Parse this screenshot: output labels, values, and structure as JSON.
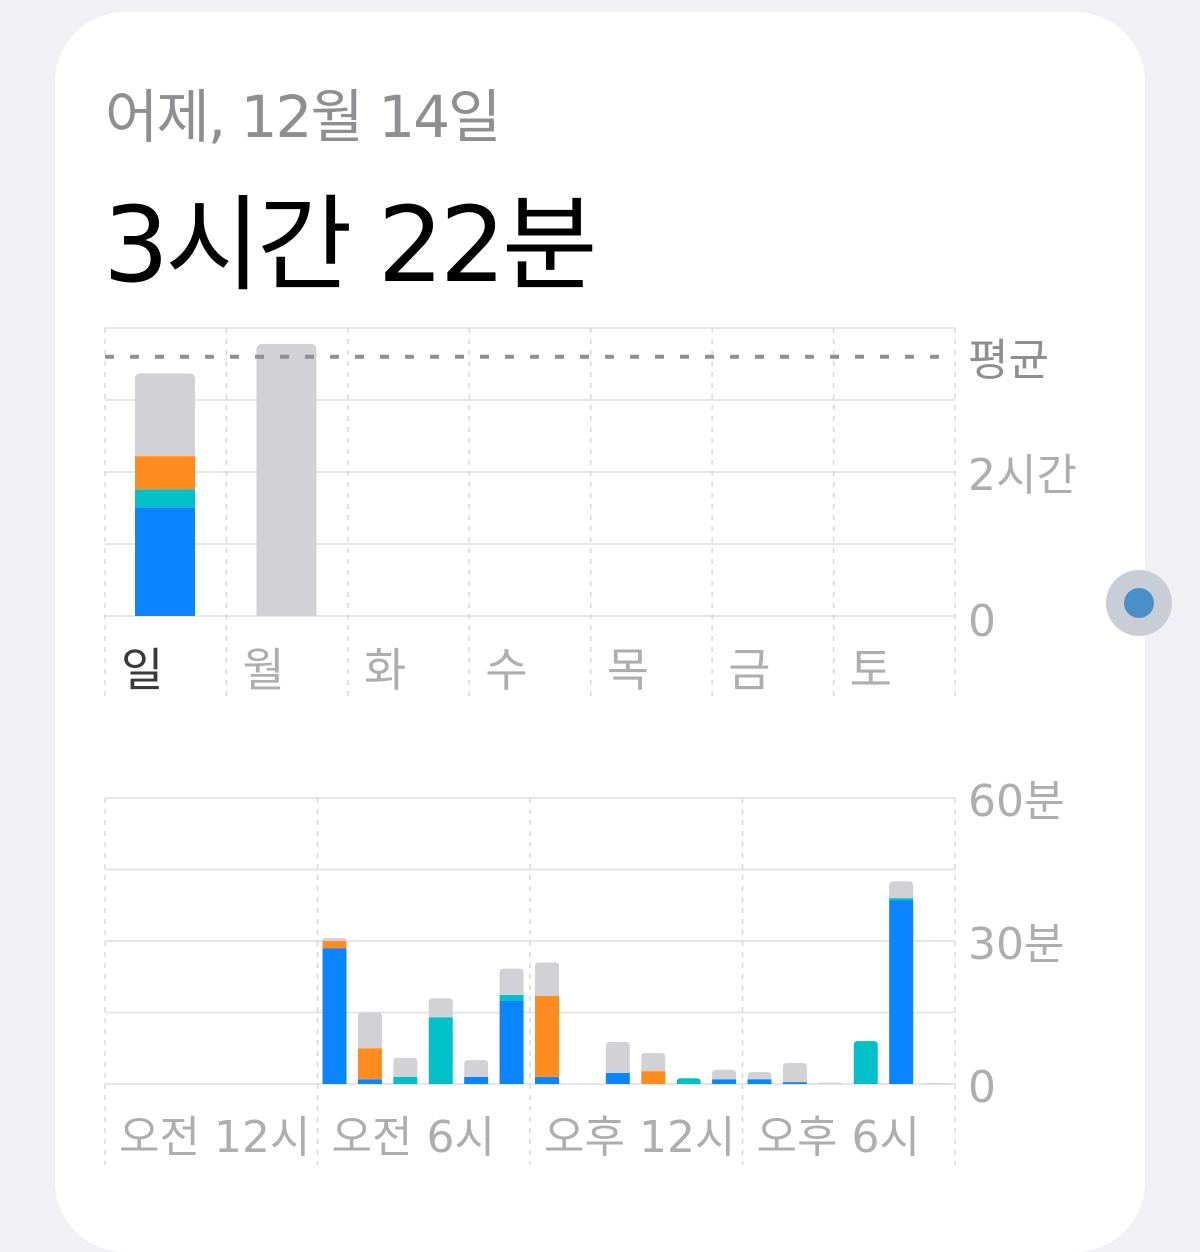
{
  "header": {
    "date": "어제, 12월 14일",
    "total": "3시간 22분"
  },
  "colors": {
    "blue": "#0a84ff",
    "teal": "#00c0c8",
    "orange": "#ff8c1f",
    "gray": "#d1d1d6",
    "grid": "#e5e5ea",
    "avg": "#8e8e93"
  },
  "chart_data": [
    {
      "type": "bar",
      "stacked": true,
      "unit": "hours",
      "categories": [
        "일",
        "월",
        "화",
        "수",
        "목",
        "금",
        "토"
      ],
      "selected": "일",
      "ylim": [
        0,
        4
      ],
      "y_tick_labels": [
        {
          "value": 0,
          "label": "0"
        },
        {
          "value": 2,
          "label": "2시간"
        }
      ],
      "average": {
        "value": 3.6,
        "label": "평균"
      },
      "series": [
        {
          "color": "blue",
          "values": [
            1.51,
            0,
            0,
            0,
            0,
            0,
            0
          ]
        },
        {
          "color": "teal",
          "values": [
            0.25,
            0,
            0,
            0,
            0,
            0,
            0
          ]
        },
        {
          "color": "orange",
          "values": [
            0.46,
            0,
            0,
            0,
            0,
            0,
            0
          ]
        },
        {
          "color": "gray",
          "values": [
            1.15,
            3.78,
            0,
            0,
            0,
            0,
            0
          ]
        }
      ]
    },
    {
      "type": "bar",
      "stacked": true,
      "unit": "minutes",
      "categories": [
        "0",
        "1",
        "2",
        "3",
        "4",
        "5",
        "6",
        "7",
        "8",
        "9",
        "10",
        "11",
        "12",
        "13",
        "14",
        "15",
        "16",
        "17",
        "18",
        "19",
        "20",
        "21",
        "22",
        "23"
      ],
      "x_tick_labels": [
        "오전 12시",
        "오전 6시",
        "오후 12시",
        "오후 6시"
      ],
      "ylim": [
        0,
        60
      ],
      "y_tick_labels": [
        {
          "value": 0,
          "label": "0"
        },
        {
          "value": 30,
          "label": "30분"
        },
        {
          "value": 60,
          "label": "60분"
        }
      ],
      "series": [
        {
          "color": "blue",
          "values": [
            0,
            0,
            0,
            0,
            0,
            0,
            28.5,
            1,
            0,
            0,
            1.5,
            17.5,
            1.5,
            0,
            2.3,
            0,
            0,
            1,
            1,
            0.4,
            0,
            0,
            38.5,
            0
          ]
        },
        {
          "color": "teal",
          "values": [
            0,
            0,
            0,
            0,
            0,
            0,
            0,
            0,
            1.5,
            14,
            0,
            1.2,
            0,
            0,
            0,
            0,
            1.2,
            0,
            0,
            0,
            0,
            9,
            0.5,
            0
          ]
        },
        {
          "color": "orange",
          "values": [
            0,
            0,
            0,
            0,
            0,
            0,
            1.5,
            6.5,
            0,
            0,
            0,
            0,
            17,
            0,
            0,
            2.7,
            0,
            0,
            0,
            0,
            0,
            0,
            0,
            0
          ]
        },
        {
          "color": "gray",
          "values": [
            0,
            0,
            0,
            0,
            0,
            0,
            0.6,
            7.5,
            4,
            4,
            3.5,
            5.5,
            7,
            0,
            6.5,
            3.8,
            0,
            2,
            1.5,
            4,
            0.3,
            0,
            3.5,
            0.2
          ]
        }
      ]
    }
  ]
}
